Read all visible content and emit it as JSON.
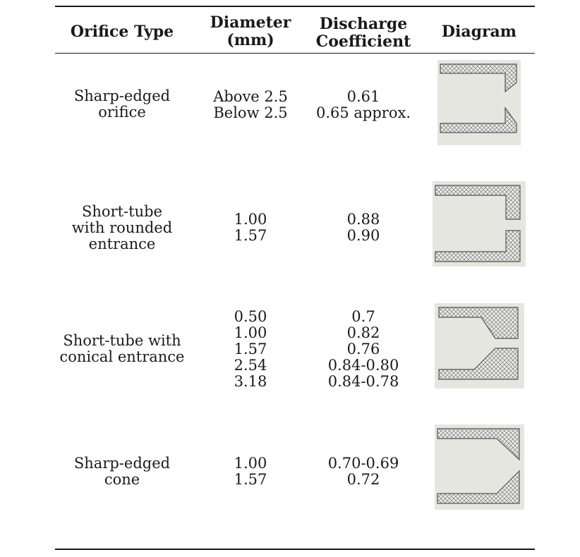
{
  "table": {
    "headers": {
      "orifice_type": "Orifice Type",
      "diameter_line1": "Diameter",
      "diameter_line2": "(mm)",
      "coef_line1": "Discharge",
      "coef_line2": "Coefficient",
      "diagram": "Diagram"
    },
    "rows": [
      {
        "type_lines": [
          "Sharp-edged",
          "orifice"
        ],
        "diameters": [
          "Above 2.5",
          "Below 2.5"
        ],
        "coefficients": [
          "0.61",
          "0.65 approx."
        ],
        "diagram_icon": "sharp-edged-orifice-diagram"
      },
      {
        "type_lines": [
          "Short-tube",
          "with rounded",
          "entrance"
        ],
        "diameters": [
          "1.00",
          "1.57"
        ],
        "coefficients": [
          "0.88",
          "0.90"
        ],
        "diagram_icon": "short-tube-rounded-entrance-diagram"
      },
      {
        "type_lines": [
          "Short-tube with",
          "conical entrance"
        ],
        "diameters": [
          "0.50",
          "1.00",
          "1.57",
          "2.54",
          "3.18"
        ],
        "coefficients": [
          "0.7",
          "0.82",
          "0.76",
          "0.84-0.80",
          "0.84-0.78"
        ],
        "diagram_icon": "short-tube-conical-entrance-diagram"
      },
      {
        "type_lines": [
          "Sharp-edged",
          "cone"
        ],
        "diameters": [
          "1.00",
          "1.57"
        ],
        "coefficients": [
          "0.70-0.69",
          "0.72"
        ],
        "diagram_icon": "sharp-edged-cone-diagram"
      }
    ]
  }
}
